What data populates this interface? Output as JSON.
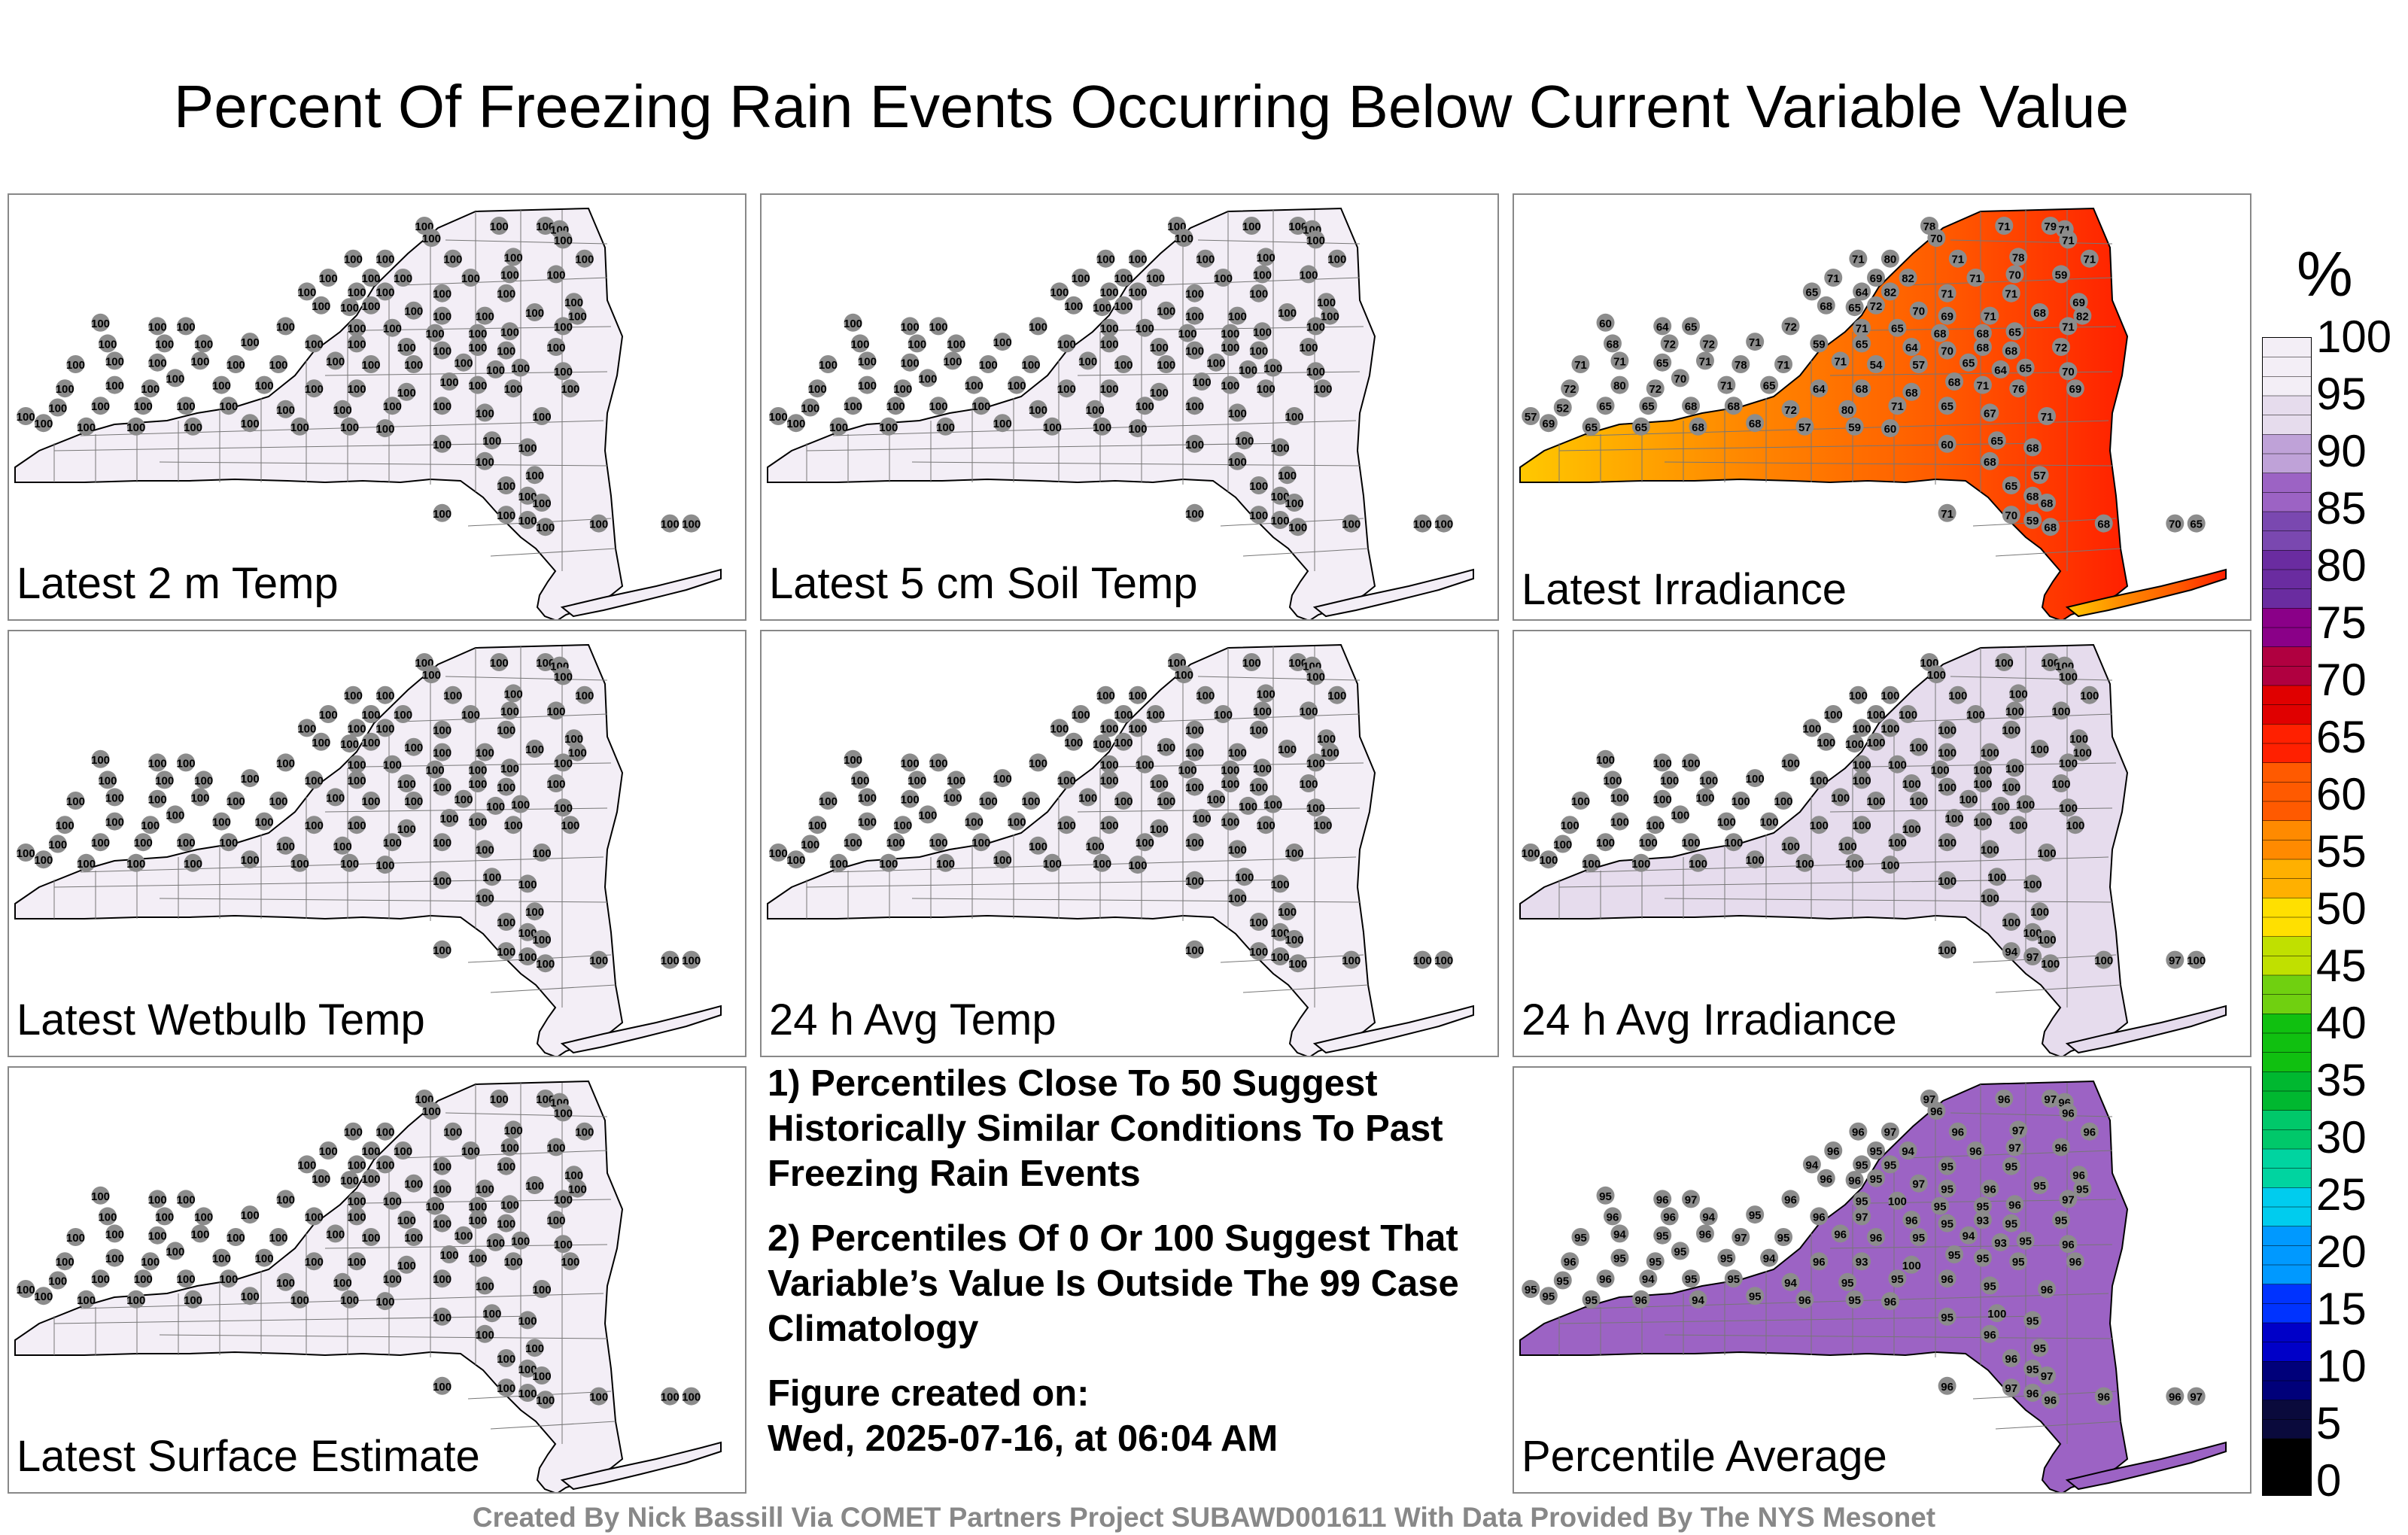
{
  "title": "Percent Of Freezing Rain Events Occurring Below Current Variable Value",
  "panels": [
    {
      "label": "Latest 2 m Temp",
      "fill": "#f3eef6",
      "mode": "single",
      "value": "100"
    },
    {
      "label": "Latest 5 cm Soil Temp",
      "fill": "#f3eef6",
      "mode": "single",
      "value": "100"
    },
    {
      "label": "Latest Irradiance",
      "fill": "#ff5a00",
      "mode": "irradiance",
      "values": [
        "78",
        "71",
        "79",
        "71",
        "70",
        "71",
        "71",
        "80",
        "71",
        "78",
        "71",
        "71",
        "69",
        "82",
        "71",
        "70",
        "59",
        "65",
        "64",
        "82",
        "71",
        "71",
        "69",
        "68",
        "65",
        "72",
        "70",
        "69",
        "71",
        "68",
        "82",
        "60",
        "64",
        "65",
        "72",
        "71",
        "65",
        "68",
        "68",
        "65",
        "71",
        "68",
        "72",
        "72",
        "71",
        "59",
        "65",
        "64",
        "70",
        "68",
        "68",
        "72",
        "71",
        "71",
        "65",
        "71",
        "78",
        "71",
        "71",
        "54",
        "57",
        "65",
        "64",
        "65",
        "70",
        "72",
        "80",
        "72",
        "70",
        "71",
        "65",
        "64",
        "68",
        "68",
        "68",
        "71",
        "76",
        "69",
        "57",
        "52",
        "65",
        "65",
        "68",
        "68",
        "72",
        "80",
        "71",
        "65",
        "67",
        "71",
        "69",
        "65",
        "65",
        "68",
        "68",
        "57",
        "59",
        "60",
        "60",
        "65",
        "68",
        "68",
        "57",
        "65",
        "68",
        "68",
        "71",
        "70",
        "59",
        "68",
        "68",
        "70",
        "65",
        "70",
        "71",
        "72",
        "70"
      ]
    },
    {
      "label": "Latest Wetbulb Temp",
      "fill": "#f3eef6",
      "mode": "single",
      "value": "100"
    },
    {
      "label": "24 h Avg Temp",
      "fill": "#f3eef6",
      "mode": "single",
      "value": "100"
    },
    {
      "label": "24 h Avg Irradiance",
      "fill": "#e6dced",
      "mode": "irr24",
      "value": "100",
      "alt_value": "97",
      "alt2_value": "94"
    },
    {
      "label": "Latest Surface Estimate",
      "fill": "#f3eef6",
      "mode": "single",
      "value": "100"
    },
    {
      "label": "Percentile Average",
      "fill": "#9c63c4",
      "mode": "average",
      "values": [
        "97",
        "96",
        "97",
        "96",
        "96",
        "96",
        "96",
        "97",
        "96",
        "97",
        "96",
        "96",
        "95",
        "94",
        "96",
        "97",
        "96",
        "94",
        "95",
        "95",
        "95",
        "95",
        "96",
        "96",
        "96",
        "95",
        "97",
        "95",
        "96",
        "95",
        "95",
        "95",
        "96",
        "97",
        "96",
        "95",
        "100",
        "95",
        "95",
        "96",
        "97",
        "96",
        "96",
        "94",
        "95",
        "96",
        "97",
        "96",
        "95",
        "93",
        "95",
        "95",
        "95",
        "94",
        "95",
        "96",
        "97",
        "95",
        "96",
        "96",
        "95",
        "94",
        "93",
        "95",
        "96",
        "96",
        "95",
        "95",
        "95",
        "95",
        "94",
        "96",
        "93",
        "100",
        "95",
        "95",
        "95",
        "96",
        "95",
        "95",
        "96",
        "94",
        "95",
        "95",
        "94",
        "95",
        "95",
        "96",
        "95",
        "96",
        "95",
        "95",
        "96",
        "94",
        "95",
        "96",
        "95",
        "96",
        "95",
        "100",
        "95",
        "96",
        "95",
        "96",
        "95"
      ]
    }
  ],
  "notes": {
    "note1": "1) Percentiles Close To 50 Suggest Historically Similar Conditions To Past Freezing Rain Events",
    "note2": "2) Percentiles Of 0 Or 100 Suggest That Variable’s Value Is Outside The 99 Case Climatology",
    "created_label": "Figure created on:",
    "created_value": "Wed, 2025-07-16, at 06:04 AM"
  },
  "colorbar": {
    "unit": "%",
    "ticks": [
      "100",
      "95",
      "90",
      "85",
      "80",
      "75",
      "70",
      "65",
      "60",
      "55",
      "50",
      "45",
      "40",
      "35",
      "30",
      "25",
      "20",
      "15",
      "10",
      "5",
      "0"
    ],
    "colors": [
      "#000000",
      "#0a0a3c",
      "#00007a",
      "#0000c8",
      "#0033ff",
      "#0099ff",
      "#00ccee",
      "#00d4a0",
      "#00c86a",
      "#00b830",
      "#10c010",
      "#70d010",
      "#c0e000",
      "#ffe000",
      "#ffb000",
      "#ff8a00",
      "#ff5a00",
      "#ff2000",
      "#e00000",
      "#b00040",
      "#8a0088",
      "#6a2ca0",
      "#7a48b0",
      "#9c63c4",
      "#bfa2d8",
      "#e6dced",
      "#f3eef6"
    ]
  },
  "credit": "Created By Nick Bassill Via COMET Partners Project SUBAWD001611 With Data Provided By The NYS Mesonet"
}
